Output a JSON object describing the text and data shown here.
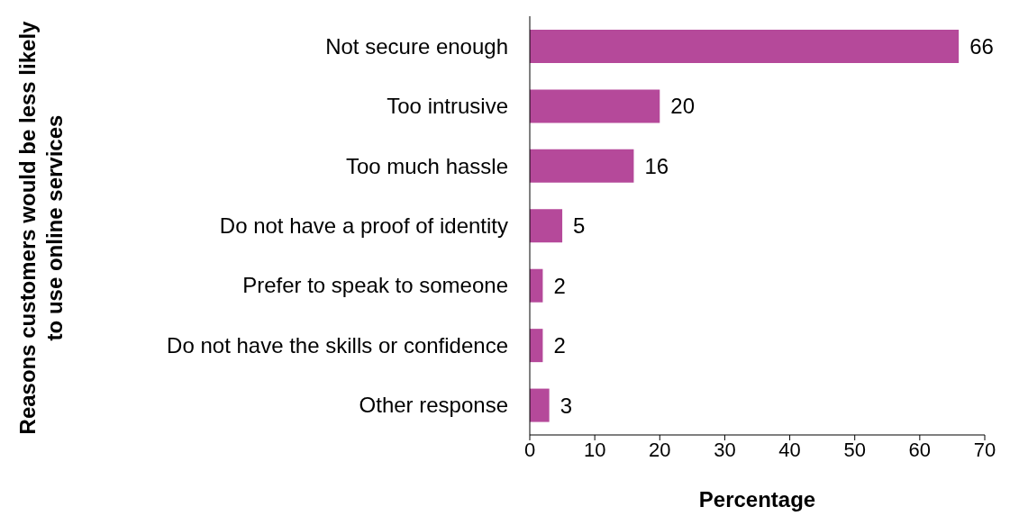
{
  "chart_data": {
    "type": "bar",
    "orientation": "horizontal",
    "categories": [
      "Not secure enough",
      "Too intrusive",
      "Too much hassle",
      "Do not have a proof of identity",
      "Prefer to speak to someone",
      "Do not have the skills or confidence",
      "Other response"
    ],
    "values": [
      66,
      20,
      16,
      5,
      2,
      2,
      3
    ],
    "color": "#b5499a",
    "xlim": [
      0,
      70
    ],
    "xticks": [
      0,
      10,
      20,
      30,
      40,
      50,
      60,
      70
    ],
    "xlabel": "Percentage",
    "ylabel": "Reasons customers would be less likely to use online services",
    "data_labels": true
  }
}
